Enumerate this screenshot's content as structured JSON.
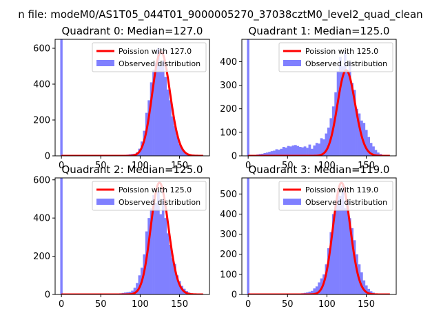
{
  "figure": {
    "suptitle": "n file: modeM0/AS1T05_044T01_9000005270_37038cztM0_level2_quad_clean",
    "colors": {
      "hist": "#8080ff",
      "poisson": "#ff0000",
      "frame": "#000000"
    }
  },
  "chart_data": [
    {
      "type": "bar",
      "title": "Quadrant 0: Median=127.0",
      "xlim": [
        -8,
        188
      ],
      "ylim": [
        0,
        650
      ],
      "xticks": [
        0,
        50,
        100,
        150
      ],
      "yticks": [
        0,
        200,
        400,
        600
      ],
      "legend": {
        "location": "top-right",
        "entries": [
          "Poission with 127.0",
          "Observed distribution"
        ]
      },
      "bin_width": 3,
      "spike": {
        "x": 0,
        "value": 650
      },
      "bins": [
        {
          "x": 72,
          "value": 2
        },
        {
          "x": 75,
          "value": 3
        },
        {
          "x": 78,
          "value": 4
        },
        {
          "x": 81,
          "value": 6
        },
        {
          "x": 84,
          "value": 7
        },
        {
          "x": 87,
          "value": 9
        },
        {
          "x": 90,
          "value": 11
        },
        {
          "x": 93,
          "value": 12
        },
        {
          "x": 96,
          "value": 20
        },
        {
          "x": 99,
          "value": 40
        },
        {
          "x": 102,
          "value": 80
        },
        {
          "x": 105,
          "value": 140
        },
        {
          "x": 108,
          "value": 240
        },
        {
          "x": 111,
          "value": 310
        },
        {
          "x": 114,
          "value": 410
        },
        {
          "x": 117,
          "value": 480
        },
        {
          "x": 120,
          "value": 520
        },
        {
          "x": 123,
          "value": 600
        },
        {
          "x": 126,
          "value": 500
        },
        {
          "x": 129,
          "value": 530
        },
        {
          "x": 132,
          "value": 440
        },
        {
          "x": 135,
          "value": 370
        },
        {
          "x": 138,
          "value": 310
        },
        {
          "x": 141,
          "value": 220
        },
        {
          "x": 144,
          "value": 165
        },
        {
          "x": 147,
          "value": 110
        },
        {
          "x": 150,
          "value": 65
        },
        {
          "x": 153,
          "value": 40
        },
        {
          "x": 156,
          "value": 24
        },
        {
          "x": 159,
          "value": 14
        },
        {
          "x": 162,
          "value": 8
        },
        {
          "x": 165,
          "value": 4
        },
        {
          "x": 168,
          "value": 2
        }
      ],
      "poisson": {
        "mean": 127.0,
        "scale": 3,
        "x_range": [
          0,
          180
        ]
      }
    },
    {
      "type": "bar",
      "title": "Quadrant 1: Median=125.0",
      "xlim": [
        -8,
        188
      ],
      "ylim": [
        0,
        495
      ],
      "xticks": [
        0,
        50,
        100,
        150
      ],
      "yticks": [
        0,
        100,
        200,
        300,
        400
      ],
      "legend": {
        "location": "top-right",
        "entries": [
          "Poission with 125.0",
          "Observed distribution"
        ]
      },
      "bin_width": 3,
      "spike": {
        "x": 0,
        "value": 495
      },
      "bins": [
        {
          "x": 12,
          "value": 6
        },
        {
          "x": 15,
          "value": 8
        },
        {
          "x": 18,
          "value": 9
        },
        {
          "x": 21,
          "value": 12
        },
        {
          "x": 24,
          "value": 14
        },
        {
          "x": 27,
          "value": 17
        },
        {
          "x": 30,
          "value": 20
        },
        {
          "x": 33,
          "value": 22
        },
        {
          "x": 36,
          "value": 28
        },
        {
          "x": 39,
          "value": 26
        },
        {
          "x": 42,
          "value": 30
        },
        {
          "x": 45,
          "value": 38
        },
        {
          "x": 48,
          "value": 35
        },
        {
          "x": 51,
          "value": 42
        },
        {
          "x": 54,
          "value": 40
        },
        {
          "x": 57,
          "value": 44
        },
        {
          "x": 60,
          "value": 46
        },
        {
          "x": 63,
          "value": 42
        },
        {
          "x": 66,
          "value": 38
        },
        {
          "x": 69,
          "value": 36
        },
        {
          "x": 72,
          "value": 40
        },
        {
          "x": 75,
          "value": 34
        },
        {
          "x": 78,
          "value": 48
        },
        {
          "x": 81,
          "value": 30
        },
        {
          "x": 84,
          "value": 44
        },
        {
          "x": 87,
          "value": 55
        },
        {
          "x": 90,
          "value": 52
        },
        {
          "x": 93,
          "value": 75
        },
        {
          "x": 96,
          "value": 70
        },
        {
          "x": 99,
          "value": 95
        },
        {
          "x": 102,
          "value": 120
        },
        {
          "x": 105,
          "value": 160
        },
        {
          "x": 108,
          "value": 210
        },
        {
          "x": 111,
          "value": 270
        },
        {
          "x": 114,
          "value": 360
        },
        {
          "x": 117,
          "value": 420
        },
        {
          "x": 120,
          "value": 380
        },
        {
          "x": 123,
          "value": 440
        },
        {
          "x": 126,
          "value": 360
        },
        {
          "x": 129,
          "value": 400
        },
        {
          "x": 132,
          "value": 310
        },
        {
          "x": 135,
          "value": 280
        },
        {
          "x": 138,
          "value": 200
        },
        {
          "x": 141,
          "value": 180
        },
        {
          "x": 144,
          "value": 150
        },
        {
          "x": 147,
          "value": 140
        },
        {
          "x": 150,
          "value": 110
        },
        {
          "x": 153,
          "value": 80
        },
        {
          "x": 156,
          "value": 55
        },
        {
          "x": 159,
          "value": 40
        },
        {
          "x": 162,
          "value": 25
        },
        {
          "x": 165,
          "value": 14
        },
        {
          "x": 168,
          "value": 8
        }
      ],
      "poisson": {
        "mean": 125.0,
        "scale": 2.3,
        "x_range": [
          0,
          180
        ]
      }
    },
    {
      "type": "bar",
      "title": "Quadrant 2: Median=125.0",
      "xlim": [
        -8,
        188
      ],
      "ylim": [
        0,
        610
      ],
      "xticks": [
        0,
        50,
        100,
        150
      ],
      "yticks": [
        0,
        200,
        400,
        600
      ],
      "legend": {
        "location": "top-right",
        "entries": [
          "Poission with 125.0",
          "Observed distribution"
        ]
      },
      "bin_width": 3,
      "spike": {
        "x": 0,
        "value": 610
      },
      "bins": [
        {
          "x": 72,
          "value": 3
        },
        {
          "x": 75,
          "value": 6
        },
        {
          "x": 78,
          "value": 8
        },
        {
          "x": 81,
          "value": 10
        },
        {
          "x": 84,
          "value": 12
        },
        {
          "x": 87,
          "value": 14
        },
        {
          "x": 90,
          "value": 20
        },
        {
          "x": 93,
          "value": 35
        },
        {
          "x": 96,
          "value": 60
        },
        {
          "x": 99,
          "value": 100
        },
        {
          "x": 102,
          "value": 140
        },
        {
          "x": 105,
          "value": 210
        },
        {
          "x": 108,
          "value": 330
        },
        {
          "x": 111,
          "value": 400
        },
        {
          "x": 114,
          "value": 450
        },
        {
          "x": 117,
          "value": 520
        },
        {
          "x": 120,
          "value": 480
        },
        {
          "x": 123,
          "value": 540
        },
        {
          "x": 126,
          "value": 420
        },
        {
          "x": 129,
          "value": 500
        },
        {
          "x": 132,
          "value": 400
        },
        {
          "x": 135,
          "value": 320
        },
        {
          "x": 138,
          "value": 260
        },
        {
          "x": 141,
          "value": 190
        },
        {
          "x": 144,
          "value": 160
        },
        {
          "x": 147,
          "value": 100
        },
        {
          "x": 150,
          "value": 70
        },
        {
          "x": 153,
          "value": 45
        },
        {
          "x": 156,
          "value": 30
        },
        {
          "x": 159,
          "value": 18
        },
        {
          "x": 162,
          "value": 10
        },
        {
          "x": 165,
          "value": 5
        },
        {
          "x": 168,
          "value": 3
        }
      ],
      "poisson": {
        "mean": 125.0,
        "scale": 3,
        "x_range": [
          0,
          180
        ]
      }
    },
    {
      "type": "bar",
      "title": "Quadrant 3: Median=119.0",
      "xlim": [
        -8,
        188
      ],
      "ylim": [
        0,
        580
      ],
      "xticks": [
        0,
        50,
        100,
        150
      ],
      "yticks": [
        0,
        100,
        200,
        300,
        400,
        500
      ],
      "legend": {
        "location": "top-right",
        "entries": [
          "Poission with 119.0",
          "Observed distribution"
        ]
      },
      "bin_width": 3,
      "spike": {
        "x": 0,
        "value": 580
      },
      "bins": [
        {
          "x": 60,
          "value": 2
        },
        {
          "x": 63,
          "value": 3
        },
        {
          "x": 66,
          "value": 4
        },
        {
          "x": 69,
          "value": 6
        },
        {
          "x": 72,
          "value": 8
        },
        {
          "x": 75,
          "value": 10
        },
        {
          "x": 78,
          "value": 14
        },
        {
          "x": 81,
          "value": 18
        },
        {
          "x": 84,
          "value": 30
        },
        {
          "x": 87,
          "value": 40
        },
        {
          "x": 90,
          "value": 60
        },
        {
          "x": 93,
          "value": 80
        },
        {
          "x": 96,
          "value": 100
        },
        {
          "x": 99,
          "value": 150
        },
        {
          "x": 102,
          "value": 230
        },
        {
          "x": 105,
          "value": 310
        },
        {
          "x": 108,
          "value": 400
        },
        {
          "x": 111,
          "value": 450
        },
        {
          "x": 114,
          "value": 510
        },
        {
          "x": 117,
          "value": 490
        },
        {
          "x": 120,
          "value": 540
        },
        {
          "x": 123,
          "value": 430
        },
        {
          "x": 126,
          "value": 470
        },
        {
          "x": 129,
          "value": 380
        },
        {
          "x": 132,
          "value": 330
        },
        {
          "x": 135,
          "value": 270
        },
        {
          "x": 138,
          "value": 200
        },
        {
          "x": 141,
          "value": 150
        },
        {
          "x": 144,
          "value": 110
        },
        {
          "x": 147,
          "value": 70
        },
        {
          "x": 150,
          "value": 45
        },
        {
          "x": 153,
          "value": 28
        },
        {
          "x": 156,
          "value": 16
        },
        {
          "x": 159,
          "value": 9
        },
        {
          "x": 162,
          "value": 5
        },
        {
          "x": 165,
          "value": 3
        }
      ],
      "poisson": {
        "mean": 119.0,
        "scale": 3,
        "x_range": [
          0,
          180
        ]
      }
    }
  ]
}
